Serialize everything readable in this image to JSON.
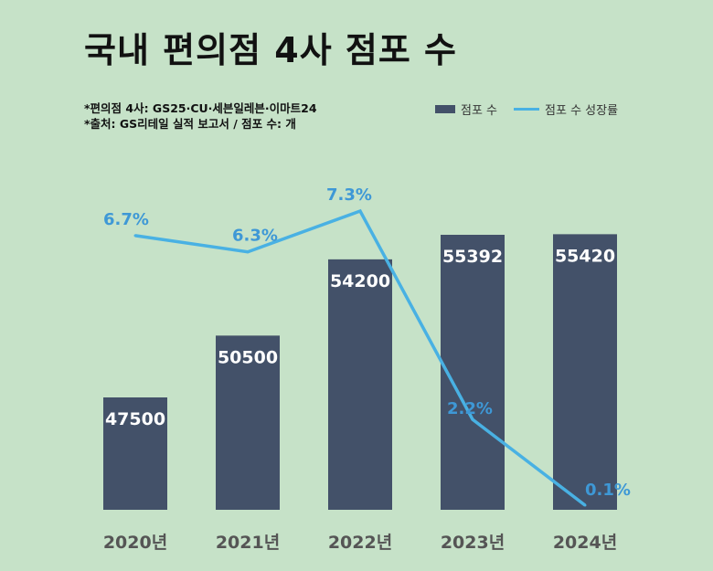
{
  "title": "국내 편의점 4사 점포 수",
  "notes": [
    "*편의점 4사: GS25·CU·세븐일레븐·이마트24",
    "*출처: GS리테일 실적 보고서 / 점포 수: 개"
  ],
  "legend": {
    "bar_label": "점포 수",
    "line_label": "점포 수 성장률"
  },
  "colors": {
    "background": "#c6e2c8",
    "bar": "#435169",
    "line": "#49b1e3",
    "line_label": "#3e98d6",
    "bar_label": "#ffffff",
    "axis_label": "#555555"
  },
  "chart_data": {
    "type": "bar",
    "categories": [
      "2020년",
      "2021년",
      "2022년",
      "2023년",
      "2024년"
    ],
    "series": [
      {
        "name": "점포 수",
        "type": "bar",
        "values": [
          47500,
          50500,
          54200,
          55392,
          55420
        ]
      },
      {
        "name": "점포 수 성장률",
        "type": "line",
        "values": [
          6.7,
          6.3,
          7.3,
          2.2,
          0.1
        ],
        "labels": [
          "6.7%",
          "6.3%",
          "7.3%",
          "2.2%",
          "0.1%"
        ]
      }
    ],
    "bar_labels": [
      "47500",
      "50500",
      "54200",
      "55392",
      "55420"
    ],
    "grid": false,
    "legend_position": "top-right"
  }
}
